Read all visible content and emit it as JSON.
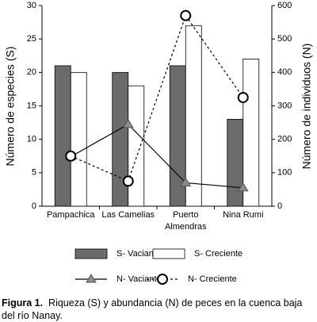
{
  "chart_data": {
    "type": "bar-line",
    "categories": [
      "Pampachica",
      "Las Camelias",
      "Puerto Almendras",
      "Nina Rumi"
    ],
    "series": [
      {
        "name": "S- Vaciante",
        "kind": "bar",
        "color": "#6b6b6b",
        "values": [
          21,
          20,
          21,
          13
        ]
      },
      {
        "name": "S- Creciente",
        "kind": "bar",
        "color": "#ffffff",
        "values": [
          20,
          18,
          27,
          22
        ]
      },
      {
        "name": "N- Vaciante",
        "kind": "line",
        "axis": "y2",
        "color": "#000000",
        "marker": "triangle",
        "marker_color": "#8c8c8c",
        "dash": false,
        "values": [
          148,
          245,
          70,
          55
        ]
      },
      {
        "name": "N- Creciente",
        "kind": "line",
        "axis": "y2",
        "color": "#000000",
        "marker": "circle",
        "marker_color": "#ffffff",
        "dash": true,
        "values": [
          150,
          75,
          570,
          325
        ]
      }
    ],
    "ylabel": "Número de especies (S)",
    "y2label": "Número de individuos  (N)",
    "ylim": [
      0,
      30
    ],
    "yticks": [
      0,
      5,
      10,
      15,
      20,
      25,
      30
    ],
    "y2lim": [
      0,
      600
    ],
    "y2ticks": [
      0,
      100,
      200,
      300,
      400,
      500,
      600
    ],
    "caption_label": "Figura 1.",
    "caption": "Riqueza (S) y abundancia (N) de peces en la cuenca baja del río Nanay."
  }
}
